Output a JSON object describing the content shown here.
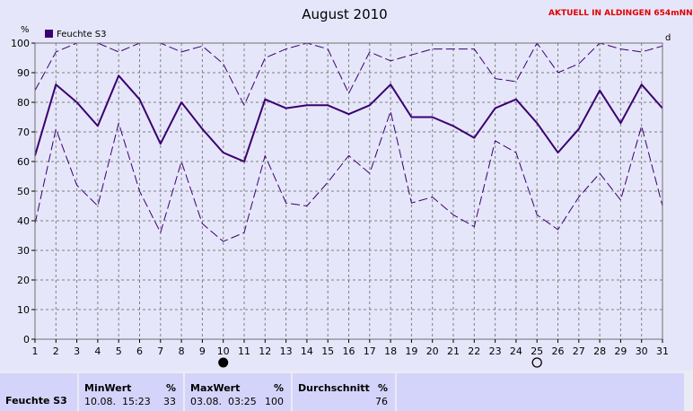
{
  "header": {
    "title": "August 2010",
    "notice": "AKTUELL IN ALDINGEN 654mNN"
  },
  "chart_data": {
    "type": "line",
    "title": "August 2010",
    "ylabel_left": "%",
    "ylabel_right": "d",
    "ylim": [
      0,
      100
    ],
    "yticks": [
      0,
      10,
      20,
      30,
      40,
      50,
      60,
      70,
      80,
      90,
      100
    ],
    "x": [
      1,
      2,
      3,
      4,
      5,
      6,
      7,
      8,
      9,
      10,
      11,
      12,
      13,
      14,
      15,
      16,
      17,
      18,
      19,
      20,
      21,
      22,
      23,
      24,
      25,
      26,
      27,
      28,
      29,
      30,
      31
    ],
    "grid": true,
    "legend": "top-left",
    "series": [
      {
        "name": "Feuchte S3",
        "role": "mean",
        "color": "#3a006f",
        "values": [
          62,
          86,
          80,
          72,
          89,
          81,
          66,
          80,
          71,
          63,
          60,
          81,
          78,
          79,
          79,
          76,
          79,
          86,
          75,
          75,
          72,
          68,
          78,
          81,
          73,
          63,
          71,
          84,
          73,
          86,
          78
        ]
      },
      {
        "role": "max",
        "color": "#3a006f",
        "values": [
          84,
          97,
          100,
          100,
          97,
          100,
          100,
          97,
          99,
          93,
          79,
          95,
          98,
          100,
          98,
          83,
          97,
          94,
          96,
          98,
          98,
          98,
          88,
          87,
          100,
          90,
          93,
          100,
          98,
          97,
          99
        ]
      },
      {
        "role": "min",
        "color": "#3a006f",
        "values": [
          39,
          71,
          52,
          45,
          73,
          50,
          36,
          60,
          39,
          33,
          36,
          62,
          46,
          45,
          53,
          62,
          56,
          77,
          46,
          48,
          42,
          38,
          67,
          63,
          42,
          37,
          48,
          56,
          47,
          72,
          45
        ]
      }
    ],
    "moon_phases": [
      {
        "day": 10,
        "phase": "new-moon"
      },
      {
        "day": 25,
        "phase": "full-moon"
      }
    ]
  },
  "stats": {
    "sensor_label": "Feuchte S3",
    "min": {
      "header": "MinWert",
      "unit": "%",
      "date": "10.08.",
      "time": "15:23",
      "value": "33"
    },
    "max": {
      "header": "MaxWert",
      "unit": "%",
      "date": "03.08.",
      "time": "03:25",
      "value": "100"
    },
    "avg": {
      "header": "Durchschnitt",
      "unit": "%",
      "value": "76"
    }
  }
}
